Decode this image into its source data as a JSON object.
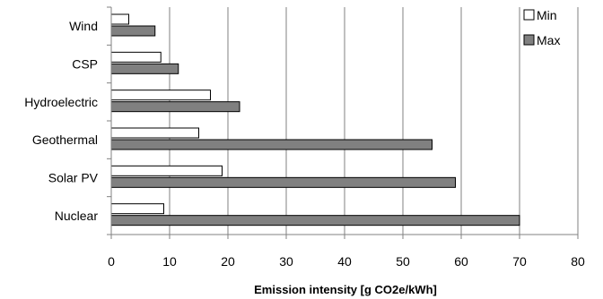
{
  "chart_data": {
    "type": "bar",
    "orientation": "horizontal",
    "categories": [
      "Wind",
      "CSP",
      "Hydroelectric",
      "Geothermal",
      "Solar PV",
      "Nuclear"
    ],
    "series": [
      {
        "name": "Min",
        "values": [
          3,
          8.5,
          17,
          15,
          19,
          9
        ],
        "color": "#ffffff"
      },
      {
        "name": "Max",
        "values": [
          7.5,
          11.5,
          22,
          55,
          59,
          70
        ],
        "color": "#808080"
      }
    ],
    "xlim": [
      0,
      80
    ],
    "xticks": [
      0,
      10,
      20,
      30,
      40,
      50,
      60,
      70,
      80
    ],
    "xlabel": "Emission intensity [g CO2e/kWh]",
    "ylabel": "",
    "title": "",
    "grid": "vertical",
    "legend_position": "top-right"
  }
}
